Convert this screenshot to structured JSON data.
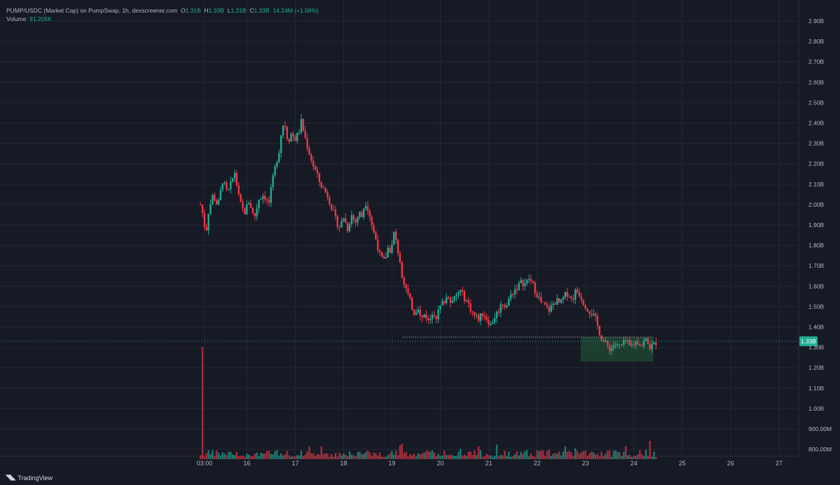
{
  "header": {
    "symbol": "PUMP/USDC (Market Cap) on PumpSwap, 1h, dexscreener.com",
    "o_label": "O",
    "o_value": "1.31B",
    "h_label": "H",
    "h_value": "1.33B",
    "l_label": "L",
    "l_value": "1.31B",
    "c_label": "C",
    "c_value": "1.33B",
    "change": "14.24M (+1.08%)",
    "volume_label": "Volume",
    "volume_value": "91.205K"
  },
  "footer": {
    "brand": "TradingView",
    "logo_icon": "tradingview-logo-icon"
  },
  "colors": {
    "up": "#22ab94",
    "down": "#f23645",
    "background": "#161a25",
    "grid": "#232734",
    "zone": "#1f4f32"
  },
  "chart_data": {
    "type": "candlestick",
    "title": "PUMP/USDC (Market Cap) on PumpSwap, 1h, dexscreener.com",
    "y_ticks": [
      "2.90B",
      "2.80B",
      "2.70B",
      "2.60B",
      "2.50B",
      "2.40B",
      "2.30B",
      "2.20B",
      "2.10B",
      "2.00B",
      "1.90B",
      "1.80B",
      "1.70B",
      "1.60B",
      "1.50B",
      "1.40B",
      "1.30B",
      "1.20B",
      "1.10B",
      "1.00B",
      "900.00M",
      "800.00M"
    ],
    "y_tick_values": [
      2.9,
      2.8,
      2.7,
      2.6,
      2.5,
      2.4,
      2.3,
      2.2,
      2.1,
      2.0,
      1.9,
      1.8,
      1.7,
      1.6,
      1.5,
      1.4,
      1.3,
      1.2,
      1.1,
      1.0,
      0.9,
      0.8
    ],
    "y_unit": "billions USD",
    "x_ticks": [
      "03:00",
      "16",
      "17",
      "18",
      "19",
      "20",
      "21",
      "22",
      "23",
      "24",
      "25",
      "26",
      "27"
    ],
    "x_tick_days": [
      15.125,
      16,
      17,
      18,
      19,
      20,
      21,
      22,
      23,
      24,
      25,
      26,
      27
    ],
    "x_range_days": [
      11.0,
      28.0
    ],
    "y_range": [
      0.77,
      2.99
    ],
    "last_price": 1.33,
    "last_price_label": "1.33B",
    "price_series_points": [
      [
        15.04,
        2.0
      ],
      [
        15.1,
        1.94
      ],
      [
        15.15,
        1.85
      ],
      [
        15.2,
        1.96
      ],
      [
        15.3,
        2.05
      ],
      [
        15.4,
        1.99
      ],
      [
        15.5,
        2.12
      ],
      [
        15.6,
        2.05
      ],
      [
        15.75,
        2.16
      ],
      [
        15.85,
        2.01
      ],
      [
        15.95,
        1.96
      ],
      [
        16.05,
        2.02
      ],
      [
        16.15,
        1.93
      ],
      [
        16.25,
        2.03
      ],
      [
        16.35,
        2.05
      ],
      [
        16.45,
        2.0
      ],
      [
        16.55,
        2.14
      ],
      [
        16.62,
        2.22
      ],
      [
        16.68,
        2.28
      ],
      [
        16.72,
        2.38
      ],
      [
        16.78,
        2.4
      ],
      [
        16.85,
        2.31
      ],
      [
        16.92,
        2.35
      ],
      [
        17.0,
        2.32
      ],
      [
        17.08,
        2.36
      ],
      [
        17.12,
        2.41
      ],
      [
        17.2,
        2.33
      ],
      [
        17.28,
        2.26
      ],
      [
        17.36,
        2.2
      ],
      [
        17.44,
        2.15
      ],
      [
        17.52,
        2.1
      ],
      [
        17.6,
        2.07
      ],
      [
        17.68,
        2.04
      ],
      [
        17.76,
        1.98
      ],
      [
        17.84,
        1.92
      ],
      [
        17.92,
        1.89
      ],
      [
        18.0,
        1.94
      ],
      [
        18.08,
        1.88
      ],
      [
        18.16,
        1.95
      ],
      [
        18.24,
        1.91
      ],
      [
        18.32,
        1.96
      ],
      [
        18.38,
        1.94
      ],
      [
        18.44,
        2.02
      ],
      [
        18.52,
        1.97
      ],
      [
        18.6,
        1.88
      ],
      [
        18.68,
        1.82
      ],
      [
        18.76,
        1.74
      ],
      [
        18.84,
        1.72
      ],
      [
        18.92,
        1.79
      ],
      [
        18.98,
        1.77
      ],
      [
        19.04,
        1.86
      ],
      [
        19.1,
        1.8
      ],
      [
        19.16,
        1.73
      ],
      [
        19.22,
        1.64
      ],
      [
        19.3,
        1.58
      ],
      [
        19.38,
        1.52
      ],
      [
        19.46,
        1.47
      ],
      [
        19.54,
        1.5
      ],
      [
        19.6,
        1.43
      ],
      [
        19.68,
        1.47
      ],
      [
        19.76,
        1.42
      ],
      [
        19.84,
        1.48
      ],
      [
        19.92,
        1.45
      ],
      [
        20.0,
        1.5
      ],
      [
        20.08,
        1.53
      ],
      [
        20.16,
        1.56
      ],
      [
        20.24,
        1.52
      ],
      [
        20.32,
        1.55
      ],
      [
        20.4,
        1.58
      ],
      [
        20.48,
        1.55
      ],
      [
        20.56,
        1.52
      ],
      [
        20.64,
        1.48
      ],
      [
        20.72,
        1.45
      ],
      [
        20.8,
        1.44
      ],
      [
        20.88,
        1.47
      ],
      [
        20.96,
        1.44
      ],
      [
        21.04,
        1.41
      ],
      [
        21.12,
        1.45
      ],
      [
        21.2,
        1.48
      ],
      [
        21.28,
        1.52
      ],
      [
        21.36,
        1.5
      ],
      [
        21.44,
        1.55
      ],
      [
        21.52,
        1.58
      ],
      [
        21.6,
        1.6
      ],
      [
        21.68,
        1.62
      ],
      [
        21.76,
        1.61
      ],
      [
        21.84,
        1.64
      ],
      [
        21.92,
        1.6
      ],
      [
        22.0,
        1.56
      ],
      [
        22.08,
        1.52
      ],
      [
        22.16,
        1.5
      ],
      [
        22.24,
        1.48
      ],
      [
        22.32,
        1.51
      ],
      [
        22.4,
        1.53
      ],
      [
        22.48,
        1.51
      ],
      [
        22.56,
        1.55
      ],
      [
        22.64,
        1.57
      ],
      [
        22.72,
        1.53
      ],
      [
        22.8,
        1.58
      ],
      [
        22.88,
        1.56
      ],
      [
        22.96,
        1.52
      ],
      [
        23.04,
        1.49
      ],
      [
        23.12,
        1.47
      ],
      [
        23.2,
        1.44
      ],
      [
        23.28,
        1.38
      ],
      [
        23.36,
        1.33
      ],
      [
        23.44,
        1.31
      ],
      [
        23.52,
        1.29
      ],
      [
        23.6,
        1.32
      ],
      [
        23.68,
        1.3
      ],
      [
        23.76,
        1.31
      ],
      [
        23.84,
        1.33
      ],
      [
        23.92,
        1.3
      ],
      [
        24.0,
        1.32
      ],
      [
        24.08,
        1.33
      ],
      [
        24.16,
        1.31
      ],
      [
        24.24,
        1.34
      ],
      [
        24.32,
        1.3
      ],
      [
        24.4,
        1.31
      ],
      [
        24.48,
        1.33
      ]
    ],
    "support_level": 1.35,
    "zone": {
      "from_day": 22.9,
      "to_day": 24.4,
      "low": 1.23,
      "high": 1.35
    },
    "volume": {
      "label": "Volume",
      "spike_day": 15.07,
      "spike_relative": 1.0,
      "base_relative": 0.12
    }
  }
}
